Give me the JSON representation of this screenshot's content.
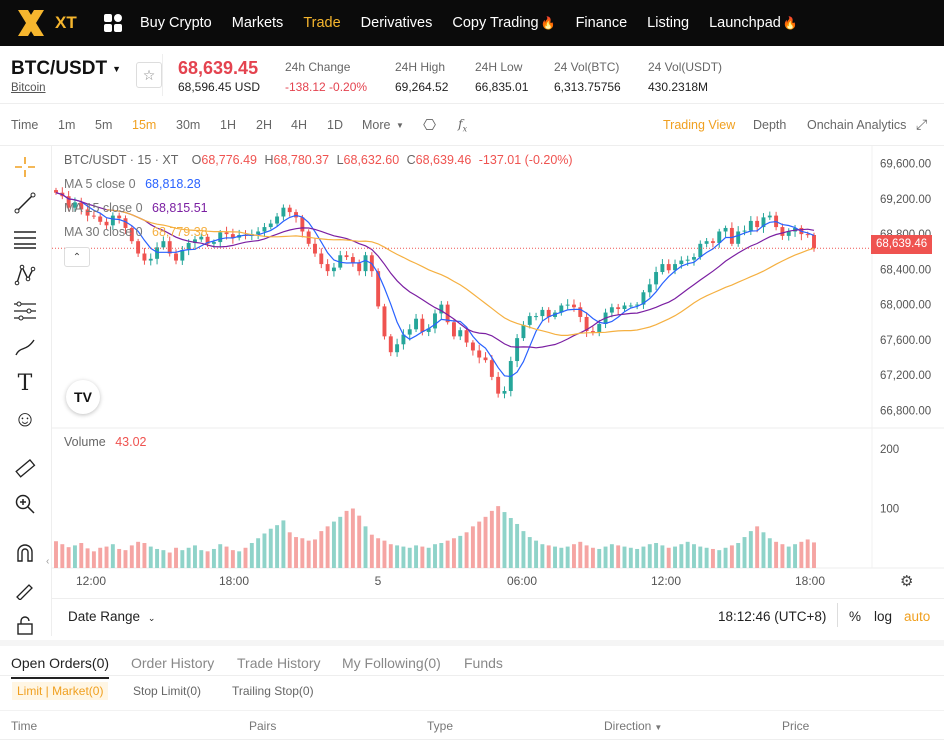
{
  "nav": {
    "logo_text": "XT",
    "items": [
      {
        "label": "Buy Crypto",
        "active": false,
        "fire": false
      },
      {
        "label": "Markets",
        "active": false,
        "fire": false
      },
      {
        "label": "Trade",
        "active": true,
        "fire": false
      },
      {
        "label": "Derivatives",
        "active": false,
        "fire": false
      },
      {
        "label": "Copy Trading",
        "active": false,
        "fire": true
      },
      {
        "label": "Finance",
        "active": false,
        "fire": false
      },
      {
        "label": "Listing",
        "active": false,
        "fire": false
      },
      {
        "label": "Launchpad",
        "active": false,
        "fire": true
      }
    ]
  },
  "ticker": {
    "pair": "BTC/USDT",
    "pair_name": "Bitcoin",
    "last_price": "68,639.45",
    "last_price_usd": "68,596.45 USD",
    "stats": [
      {
        "label": "24h Change",
        "value": "-138.12 -0.20%",
        "red": true
      },
      {
        "label": "24H High",
        "value": "69,264.52",
        "red": false
      },
      {
        "label": "24H Low",
        "value": "66,835.01",
        "red": false
      },
      {
        "label": "24 Vol(BTC)",
        "value": "6,313.75756",
        "red": false
      },
      {
        "label": "24 Vol(USDT)",
        "value": "430.2318M",
        "red": false
      }
    ]
  },
  "toolbar": {
    "intervals": [
      "Time",
      "1m",
      "5m",
      "15m",
      "30m",
      "1H",
      "2H",
      "4H",
      "1D",
      "More"
    ],
    "active_interval": "15m",
    "views": [
      "Trading View",
      "Depth",
      "Onchain Analytics"
    ],
    "active_view": "Trading View"
  },
  "chart_legend": {
    "title": "BTC/USDT · 15 · XT",
    "o_label": "O",
    "o": "68,776.49",
    "h_label": "H",
    "h": "68,780.37",
    "l_label": "L",
    "l": "68,632.60",
    "c_label": "C",
    "c": "68,639.46",
    "change": "-137.01 (-0.20%)",
    "ma5_label": "MA 5 close 0",
    "ma5": "68,818.28",
    "ma15_label": "MA 15 close 0",
    "ma15": "68,815.51",
    "ma30_label": "MA 30 close 0",
    "ma30": "68,779.38",
    "volume_label": "Volume",
    "volume": "43.02",
    "last_tag": "68,639.46"
  },
  "colors": {
    "up": "#26a69a",
    "down": "#ef5350",
    "ma5": "#2962ff",
    "ma15": "#7b1fa2",
    "ma30": "#f5b041",
    "accent": "#f0a020"
  },
  "bottom": {
    "date_range": "Date Range",
    "clock": "18:12:46 (UTC+8)",
    "percent": "%",
    "log": "log",
    "auto": "auto"
  },
  "orders": {
    "tabs": [
      "Open Orders(0)",
      "Order History",
      "Trade History",
      "My Following(0)",
      "Funds"
    ],
    "subtabs": [
      "Limit | Market(0)",
      "Stop Limit(0)",
      "Trailing Stop(0)"
    ],
    "columns": [
      "Time",
      "Pairs",
      "Type",
      "Direction",
      "Price"
    ]
  },
  "chart_data": {
    "type": "candlestick",
    "title": "BTC/USDT · 15 · XT",
    "price_axis_ticks": [
      "69,600.00",
      "69,200.00",
      "68,800.00",
      "68,400.00",
      "68,000.00",
      "67,600.00",
      "67,200.00",
      "66,800.00"
    ],
    "price_range": [
      66600,
      69800
    ],
    "volume_axis_ticks": [
      "200",
      "100"
    ],
    "time_axis_ticks": [
      "12:00",
      "18:00",
      "5",
      "06:00",
      "12:00",
      "18:00"
    ],
    "candles_close": [
      69270,
      69230,
      69100,
      69160,
      69080,
      69010,
      69000,
      68940,
      68900,
      69010,
      68980,
      68870,
      68720,
      68580,
      68500,
      68520,
      68650,
      68720,
      68580,
      68500,
      68620,
      68700,
      68740,
      68770,
      68690,
      68710,
      68820,
      68800,
      68760,
      68790,
      68780,
      68800,
      68830,
      68880,
      68920,
      69000,
      69100,
      69050,
      68990,
      68830,
      68690,
      68580,
      68460,
      68380,
      68420,
      68560,
      68540,
      68470,
      68380,
      68560,
      68380,
      67980,
      67640,
      67460,
      67550,
      67660,
      67720,
      67840,
      67690,
      67730,
      67900,
      68000,
      67800,
      67640,
      67710,
      67570,
      67480,
      67400,
      67370,
      67180,
      66990,
      67020,
      67360,
      67620,
      67770,
      67870,
      67870,
      67940,
      67860,
      67910,
      67990,
      68000,
      67970,
      67860,
      67700,
      67680,
      67780,
      67910,
      67970,
      67950,
      67990,
      67990,
      68000,
      68140,
      68230,
      68370,
      68460,
      68390,
      68460,
      68500,
      68510,
      68540,
      68690,
      68720,
      68700,
      68830,
      68870,
      68690,
      68830,
      68840,
      68950,
      68880,
      68990,
      69010,
      68880,
      68780,
      68830,
      68870,
      68800,
      68790,
      68640
    ],
    "volumes": [
      45,
      40,
      35,
      38,
      42,
      33,
      28,
      34,
      36,
      40,
      32,
      30,
      38,
      44,
      42,
      36,
      32,
      30,
      26,
      34,
      30,
      34,
      38,
      30,
      28,
      32,
      40,
      36,
      30,
      28,
      34,
      42,
      50,
      58,
      66,
      72,
      80,
      60,
      52,
      50,
      46,
      48,
      62,
      70,
      78,
      86,
      96,
      100,
      88,
      70,
      56,
      50,
      46,
      40,
      38,
      36,
      34,
      38,
      36,
      34,
      40,
      42,
      46,
      50,
      54,
      60,
      70,
      78,
      86,
      96,
      104,
      94,
      84,
      74,
      62,
      52,
      46,
      40,
      38,
      36,
      34,
      36,
      40,
      44,
      38,
      34,
      32,
      36,
      40,
      38,
      36,
      34,
      32,
      36,
      40,
      42,
      38,
      34,
      36,
      40,
      44,
      40,
      36,
      34,
      32,
      30,
      34,
      38,
      42,
      52,
      62,
      70,
      60,
      50,
      44,
      40,
      36,
      40,
      44,
      48,
      43
    ]
  }
}
